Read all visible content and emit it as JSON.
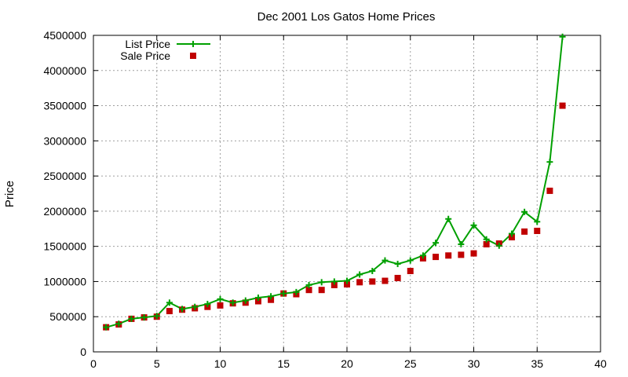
{
  "chart_data": {
    "type": "line",
    "title": "Dec 2001 Los Gatos Home Prices",
    "xlabel": "",
    "ylabel": "Price",
    "xlim": [
      0,
      40
    ],
    "ylim": [
      0,
      4500000
    ],
    "xticks": [
      0,
      5,
      10,
      15,
      20,
      25,
      30,
      35,
      40
    ],
    "yticks": [
      0,
      500000,
      1000000,
      1500000,
      2000000,
      2500000,
      3000000,
      3500000,
      4000000,
      4500000
    ],
    "grid": true,
    "legend_position": "top-left",
    "x": [
      1,
      2,
      3,
      4,
      5,
      6,
      7,
      8,
      9,
      10,
      11,
      12,
      13,
      14,
      15,
      16,
      17,
      18,
      19,
      20,
      21,
      22,
      23,
      24,
      25,
      26,
      27,
      28,
      29,
      30,
      31,
      32,
      33,
      34,
      35,
      36,
      37
    ],
    "series": [
      {
        "name": "List Price",
        "color": "#00a000",
        "marker": "plus",
        "values": [
          350000,
          400000,
          470000,
          490000,
          510000,
          700000,
          610000,
          640000,
          680000,
          750000,
          700000,
          730000,
          770000,
          790000,
          830000,
          850000,
          950000,
          990000,
          1000000,
          1010000,
          1100000,
          1150000,
          1300000,
          1250000,
          1300000,
          1370000,
          1550000,
          1890000,
          1530000,
          1800000,
          1600000,
          1510000,
          1680000,
          1990000,
          1850000,
          2700000,
          4480000
        ]
      },
      {
        "name": "Sale Price",
        "color": "#c00000",
        "marker": "square",
        "values": [
          350000,
          390000,
          470000,
          490000,
          500000,
          580000,
          600000,
          620000,
          640000,
          660000,
          690000,
          700000,
          720000,
          740000,
          830000,
          820000,
          880000,
          880000,
          950000,
          960000,
          990000,
          1000000,
          1010000,
          1050000,
          1150000,
          1330000,
          1350000,
          1370000,
          1380000,
          1400000,
          1530000,
          1540000,
          1630000,
          1710000,
          1720000,
          2290000,
          3500000
        ]
      }
    ]
  }
}
